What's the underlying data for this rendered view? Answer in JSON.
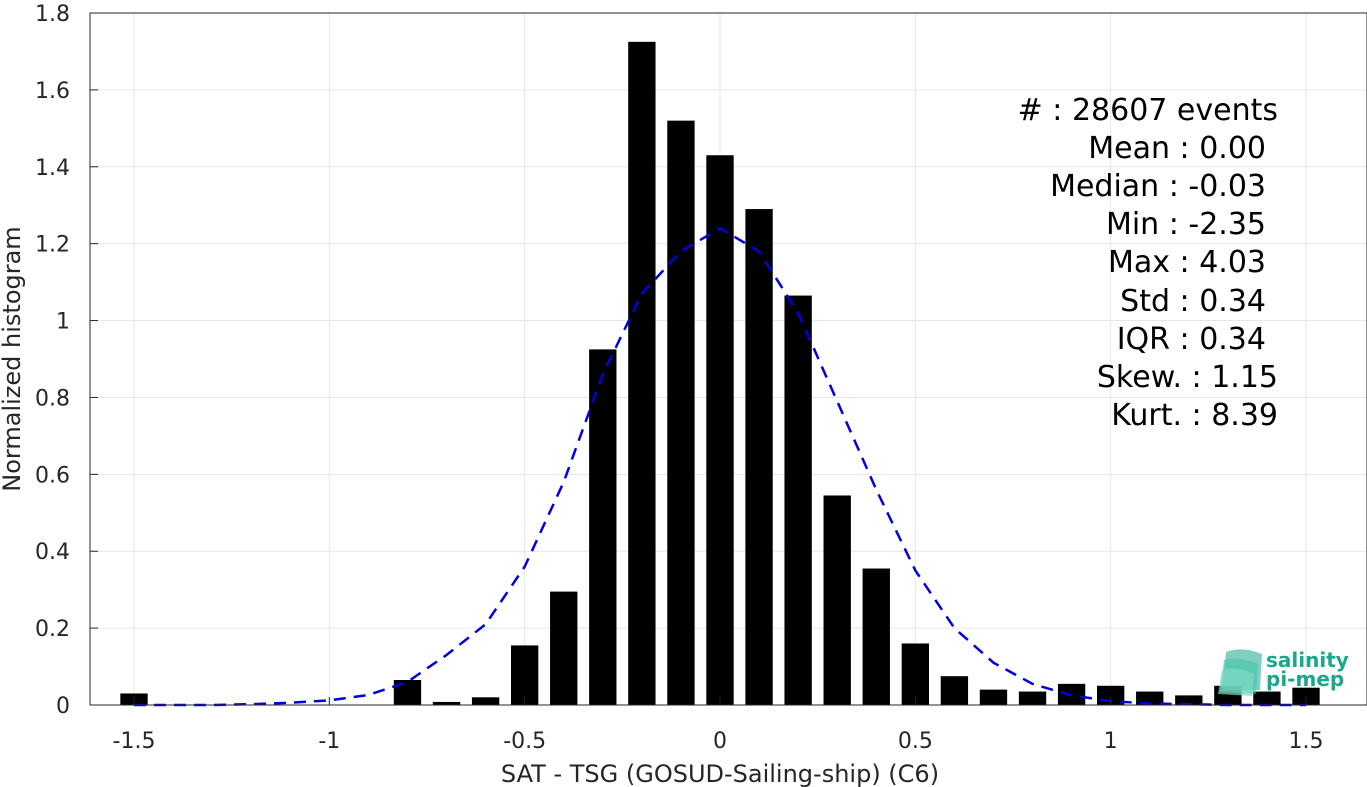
{
  "chart_data": {
    "type": "bar",
    "xlabel": "SAT - TSG (GOSUD-Sailing-ship) (C6)",
    "ylabel": "Normalized histogram",
    "xlim": [
      -1.6,
      1.6
    ],
    "ylim": [
      0,
      1.8
    ],
    "xticks": [
      -1.5,
      -1,
      -0.5,
      0,
      0.5,
      1,
      1.5
    ],
    "xtick_labels": [
      "-1.5",
      "-1",
      "-0.5",
      "0",
      "0.5",
      "1",
      "1.5"
    ],
    "yticks": [
      0,
      0.2,
      0.4,
      0.6,
      0.8,
      1,
      1.2,
      1.4,
      1.6,
      1.8
    ],
    "ytick_labels": [
      "0",
      "0.2",
      "0.4",
      "0.6",
      "0.8",
      "1",
      "1.2",
      "1.4",
      "1.6",
      "1.8"
    ],
    "grid": true,
    "bar_color": "#000000",
    "bar_width": 0.07,
    "bars": {
      "x": [
        -1.5,
        -0.8,
        -0.7,
        -0.6,
        -0.5,
        -0.4,
        -0.3,
        -0.2,
        -0.1,
        0.0,
        0.1,
        0.2,
        0.3,
        0.4,
        0.5,
        0.6,
        0.7,
        0.8,
        0.9,
        1.0,
        1.1,
        1.2,
        1.3,
        1.4,
        1.5
      ],
      "values": [
        0.03,
        0.065,
        0.008,
        0.02,
        0.155,
        0.295,
        0.925,
        1.725,
        1.52,
        1.43,
        1.29,
        1.065,
        0.545,
        0.355,
        0.16,
        0.075,
        0.04,
        0.035,
        0.055,
        0.05,
        0.035,
        0.025,
        0.05,
        0.035,
        0.045
      ]
    },
    "fit_curve": {
      "style": "dashed",
      "color": "#0000e0",
      "x": [
        -1.5,
        -1.4,
        -1.3,
        -1.2,
        -1.1,
        -1.0,
        -0.9,
        -0.8,
        -0.7,
        -0.6,
        -0.5,
        -0.4,
        -0.3,
        -0.2,
        -0.1,
        0.0,
        0.1,
        0.2,
        0.3,
        0.4,
        0.5,
        0.6,
        0.7,
        0.8,
        0.9,
        1.0,
        1.1,
        1.2,
        1.3,
        1.4,
        1.5
      ],
      "values": [
        0.0,
        0.0,
        0.0,
        0.002,
        0.006,
        0.012,
        0.026,
        0.06,
        0.13,
        0.21,
        0.36,
        0.58,
        0.86,
        1.07,
        1.18,
        1.24,
        1.18,
        1.02,
        0.79,
        0.56,
        0.35,
        0.2,
        0.11,
        0.055,
        0.025,
        0.01,
        0.004,
        0.002,
        0.0,
        0.0,
        0.0
      ]
    },
    "annotations": [
      "#  : 28607 events",
      "Mean : 0.00",
      "Median : -0.03",
      "Min : -2.35",
      "Max : 4.03",
      "Std : 0.34",
      "IQR : 0.34",
      "Skew. : 1.15",
      "Kurt. : 8.39"
    ]
  },
  "logo": {
    "line1": "salinity",
    "line2": "pi-mep",
    "color": "#1aa88c"
  }
}
